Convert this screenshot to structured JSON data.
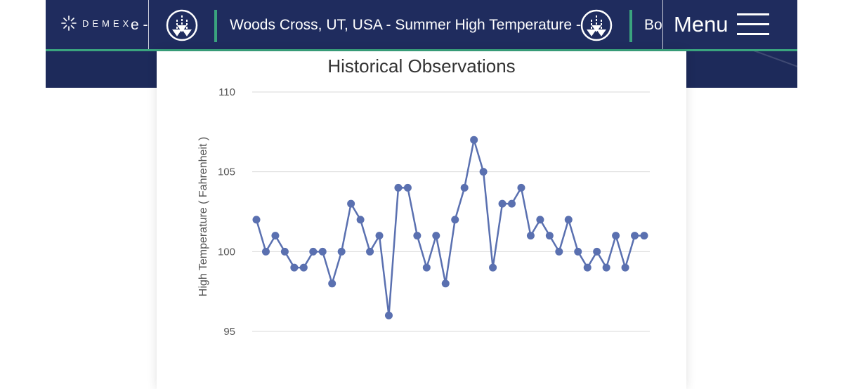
{
  "header": {
    "brand": "DEMEX",
    "tab_partial_left": "e -",
    "tab_main": "Woods Cross, UT, USA - Summer High Temperature -",
    "tab_partial_right": "Bo",
    "menu_label": "Menu"
  },
  "colors": {
    "navy": "#1f2c5e",
    "accent_green": "#3aa47e",
    "series": "#5a70b0"
  },
  "icons": [
    "demex-logo-icon",
    "download-icon",
    "download-icon",
    "hamburger-menu-icon"
  ],
  "chart_data": {
    "type": "line",
    "title": "Historical Observations",
    "xlabel": "",
    "ylabel": "High Temperature ( Fahrenheit )",
    "ylim": [
      95,
      110
    ],
    "yticks": [
      95,
      100,
      105,
      110
    ],
    "grid": true,
    "series": [
      {
        "name": "High Temperature",
        "values": [
          102,
          100,
          101,
          100,
          99,
          99,
          100,
          100,
          98,
          100,
          103,
          102,
          100,
          101,
          96,
          104,
          104,
          101,
          99,
          101,
          98,
          102,
          104,
          107,
          105,
          99,
          103,
          103,
          104,
          101,
          102,
          101,
          100,
          102,
          100,
          99,
          100,
          99,
          101,
          99,
          101,
          101
        ]
      }
    ]
  }
}
